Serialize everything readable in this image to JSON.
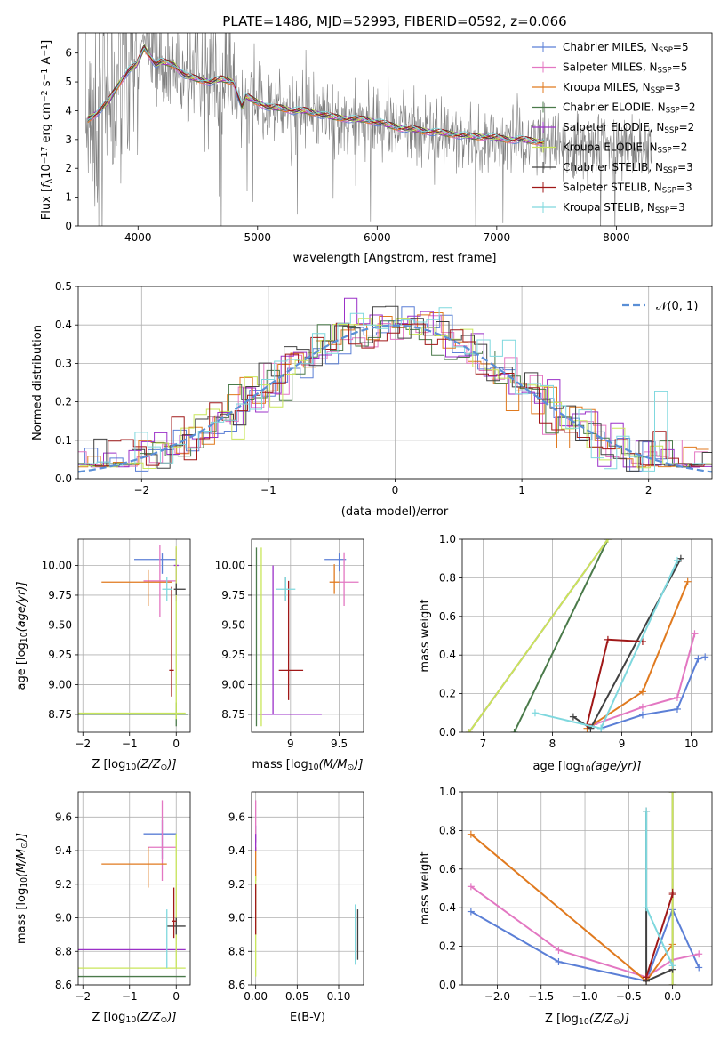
{
  "colors": {
    "Chabrier MILES": "#5b7fd6",
    "Salpeter MILES": "#e377c2",
    "Kroupa MILES": "#e07a1f",
    "Chabrier ELODIE": "#4a7a4a",
    "Salpeter ELODIE": "#9b30c8",
    "Kroupa ELODIE": "#c9e65a",
    "Chabrier STELIB": "#404040",
    "Salpeter STELIB": "#a01818",
    "Kroupa STELIB": "#7fd8de",
    "data": "#7f7f7f",
    "normal": "#5a8fd6"
  },
  "chart_data": [
    {
      "id": "spectrum",
      "type": "line",
      "title": "PLATE=1486, MJD=52993, FIBERID=0592, z=0.066",
      "xlabel": "wavelength [Angstrom, rest frame]",
      "ylabel": "Flux [f_λ10^{-17} erg cm^{-2} s^{-1} A^{-1}]",
      "ylabel_parts": [
        "Flux [",
        "f",
        "λ",
        "10",
        "−17",
        " erg cm",
        "−2",
        " s",
        "−1",
        " A",
        "−1",
        "]"
      ],
      "xlim": [
        3500,
        8800
      ],
      "ylim": [
        0,
        6.7
      ],
      "xticks": [
        4000,
        5000,
        6000,
        7000,
        8000
      ],
      "yticks": [
        0,
        1,
        2,
        3,
        4,
        5,
        6
      ],
      "legend": [
        {
          "name": "Chabrier MILES, N",
          "sub": "SSP",
          "val": "=5"
        },
        {
          "name": "Salpeter MILES, N",
          "sub": "SSP",
          "val": "=5"
        },
        {
          "name": "Kroupa MILES, N",
          "sub": "SSP",
          "val": "=3"
        },
        {
          "name": "Chabrier ELODIE, N",
          "sub": "SSP",
          "val": "=2"
        },
        {
          "name": "Salpeter ELODIE, N",
          "sub": "SSP",
          "val": "=2"
        },
        {
          "name": "Kroupa ELODIE, N",
          "sub": "SSP",
          "val": "=2"
        },
        {
          "name": "Chabrier STELIB, N",
          "sub": "SSP",
          "val": "=3"
        },
        {
          "name": "Salpeter STELIB, N",
          "sub": "SSP",
          "val": "=3"
        },
        {
          "name": "Kroupa STELIB, N",
          "sub": "SSP",
          "val": "=3"
        }
      ],
      "legend_placement": "upper right",
      "model_envelope": {
        "x": [
          3580,
          3650,
          3750,
          3850,
          3920,
          3990,
          4050,
          4100,
          4150,
          4200,
          4300,
          4400,
          4500,
          4600,
          4700,
          4800,
          4870,
          4900,
          5000,
          5100,
          5200,
          5300,
          5400,
          5500,
          5600,
          5700,
          5800,
          5900,
          6000,
          6100,
          6200,
          6300,
          6400,
          6500,
          6600,
          6700,
          6800,
          6900,
          7000,
          7100,
          7200,
          7300,
          7400
        ],
        "y": [
          3.7,
          3.9,
          4.3,
          5.0,
          5.4,
          5.6,
          6.2,
          5.9,
          5.6,
          5.7,
          5.6,
          5.2,
          5.1,
          5.0,
          5.1,
          5.0,
          4.1,
          4.5,
          4.3,
          4.1,
          4.1,
          4.0,
          4.0,
          3.9,
          3.8,
          3.75,
          3.7,
          3.7,
          3.6,
          3.5,
          3.4,
          3.35,
          3.3,
          3.25,
          3.2,
          3.15,
          3.1,
          3.1,
          3.05,
          3.0,
          3.0,
          2.95,
          2.9
        ]
      },
      "data_endpoints": {
        "x": [
          3560,
          8300
        ],
        "y": [
          3.5,
          2.6
        ]
      }
    },
    {
      "id": "residuals",
      "type": "histogram",
      "xlabel": "(data-model)/error",
      "ylabel": "Normed distribution",
      "xlim": [
        -2.5,
        2.5
      ],
      "ylim": [
        0,
        0.5
      ],
      "xticks": [
        -2,
        -1,
        0,
        1,
        2
      ],
      "yticks": [
        0,
        0.1,
        0.2,
        0.3,
        0.4,
        0.5
      ],
      "legend": [
        "𝒩(0, 1)"
      ],
      "legend_placement": "upper right",
      "reference": {
        "mean": 0,
        "sigma": 1
      }
    },
    {
      "id": "age_vs_Z",
      "type": "errorbar",
      "xlabel_parts": [
        "Z [log",
        "10",
        "(Z/Z",
        "⊙",
        ")]"
      ],
      "ylabel_parts": [
        "age  [log",
        "10",
        "(age/yr)]"
      ],
      "xlim": [
        -2.1,
        0.3
      ],
      "ylim": [
        8.6,
        10.22
      ],
      "xticks": [
        -2,
        -1,
        0
      ],
      "yticks": [
        8.75,
        9.0,
        9.25,
        9.5,
        9.75,
        10.0
      ],
      "points": [
        {
          "model": "Chabrier MILES",
          "x": -0.3,
          "xerr": [
            0.6,
            0.3
          ],
          "y": 10.05,
          "yerr": [
            0.12,
            0.05
          ]
        },
        {
          "model": "Salpeter MILES",
          "x": -0.35,
          "xerr": [
            0.35,
            0.35
          ],
          "y": 9.87,
          "yerr": [
            0.3,
            0.3
          ]
        },
        {
          "model": "Kroupa MILES",
          "x": -0.6,
          "xerr": [
            1.0,
            0.5
          ],
          "y": 9.86,
          "yerr": [
            0.2,
            0.1
          ]
        },
        {
          "model": "Chabrier ELODIE",
          "x": 0.0,
          "xerr": [
            2.1,
            0.25
          ],
          "y": 8.75,
          "yerr": [
            0.1,
            0.1
          ]
        },
        {
          "model": "Salpeter ELODIE",
          "x": 0.0,
          "xerr": [
            0.05,
            0.05
          ],
          "y": 10.0,
          "yerr": [
            0.3,
            0.15
          ]
        },
        {
          "model": "Kroupa ELODIE",
          "x": 0.0,
          "xerr": [
            2.1,
            0.2
          ],
          "y": 8.76,
          "yerr": [
            0.05,
            1.4
          ]
        },
        {
          "model": "Chabrier STELIB",
          "x": 0.0,
          "xerr": [
            0.05,
            0.2
          ],
          "y": 9.8,
          "yerr": [
            0.05,
            0.05
          ]
        },
        {
          "model": "Salpeter STELIB",
          "x": -0.1,
          "xerr": [
            0.05,
            0.05
          ],
          "y": 9.12,
          "yerr": [
            0.22,
            0.7
          ]
        },
        {
          "model": "Kroupa STELIB",
          "x": -0.2,
          "xerr": [
            0.1,
            0.1
          ],
          "y": 9.8,
          "yerr": [
            0.1,
            0.1
          ]
        }
      ]
    },
    {
      "id": "age_vs_mass",
      "type": "errorbar",
      "xlabel_parts": [
        "mass [log",
        "10",
        "(M/M",
        "⊙",
        ")]"
      ],
      "xlim": [
        8.6,
        9.75
      ],
      "ylim": [
        8.6,
        10.22
      ],
      "xticks": [
        9.0,
        9.5
      ],
      "yticks": [
        8.75,
        9.0,
        9.25,
        9.5,
        9.75,
        10.0
      ],
      "points": [
        {
          "model": "Chabrier MILES",
          "x": 9.5,
          "xerr": [
            0.15,
            0.07
          ],
          "y": 10.05,
          "yerr": [
            0.1,
            0.05
          ]
        },
        {
          "model": "Salpeter MILES",
          "x": 9.55,
          "xerr": [
            0.05,
            0.15
          ],
          "y": 9.86,
          "yerr": [
            0.2,
            0.25
          ]
        },
        {
          "model": "Kroupa MILES",
          "x": 9.45,
          "xerr": [
            0.05,
            0.05
          ],
          "y": 9.86,
          "yerr": [
            0.1,
            0.15
          ]
        },
        {
          "model": "Chabrier ELODIE",
          "x": 8.65,
          "xerr": [
            0.0,
            0.0
          ],
          "y": 8.75,
          "yerr": [
            0.1,
            1.4
          ]
        },
        {
          "model": "Salpeter ELODIE",
          "x": 8.82,
          "xerr": [
            0.15,
            0.5
          ],
          "y": 8.75,
          "yerr": [
            0.0,
            1.25
          ]
        },
        {
          "model": "Kroupa ELODIE",
          "x": 8.7,
          "xerr": [
            0.0,
            0.0
          ],
          "y": 8.75,
          "yerr": [
            0.1,
            1.4
          ]
        },
        {
          "model": "Chabrier STELIB",
          "x": 8.95,
          "xerr": [
            0.0,
            0.0
          ],
          "y": 9.8,
          "yerr": [
            0.1,
            0.1
          ]
        },
        {
          "model": "Salpeter STELIB",
          "x": 8.98,
          "xerr": [
            0.1,
            0.15
          ],
          "y": 9.12,
          "yerr": [
            0.25,
            0.75
          ]
        },
        {
          "model": "Kroupa STELIB",
          "x": 8.95,
          "xerr": [
            0.1,
            0.1
          ],
          "y": 9.8,
          "yerr": [
            0.1,
            0.1
          ]
        }
      ]
    },
    {
      "id": "mass_weight_vs_age",
      "type": "line",
      "xlabel_parts": [
        "age  [log",
        "10",
        "(age/yr)]"
      ],
      "ylabel": "mass weight",
      "xlim": [
        6.7,
        10.3
      ],
      "ylim": [
        0,
        1.0
      ],
      "xticks": [
        7,
        8,
        9,
        10
      ],
      "yticks": [
        0.0,
        0.2,
        0.4,
        0.6,
        0.8,
        1.0
      ],
      "series": [
        {
          "model": "Chabrier MILES",
          "x": [
            8.7,
            9.3,
            9.8,
            10.1,
            10.2
          ],
          "y": [
            0.02,
            0.09,
            0.12,
            0.38,
            0.39
          ]
        },
        {
          "model": "Salpeter MILES",
          "x": [
            8.6,
            9.3,
            9.8,
            10.05
          ],
          "y": [
            0.04,
            0.13,
            0.18,
            0.51
          ]
        },
        {
          "model": "Kroupa MILES",
          "x": [
            8.5,
            9.3,
            9.95
          ],
          "y": [
            0.02,
            0.21,
            0.78
          ]
        },
        {
          "model": "Chabrier ELODIE",
          "x": [
            7.45,
            8.8
          ],
          "y": [
            0.0,
            1.0
          ]
        },
        {
          "model": "Salpeter ELODIE",
          "x": [
            6.8,
            8.8
          ],
          "y": [
            0.0,
            1.0
          ]
        },
        {
          "model": "Kroupa ELODIE",
          "x": [
            6.8,
            8.8
          ],
          "y": [
            0.0,
            1.0
          ]
        },
        {
          "model": "Chabrier STELIB",
          "x": [
            8.3,
            8.55,
            9.85
          ],
          "y": [
            0.08,
            0.02,
            0.9
          ]
        },
        {
          "model": "Salpeter STELIB",
          "x": [
            8.5,
            8.8,
            9.3
          ],
          "y": [
            0.04,
            0.48,
            0.47
          ]
        },
        {
          "model": "Kroupa STELIB",
          "x": [
            7.75,
            8.7,
            9.8
          ],
          "y": [
            0.1,
            0.02,
            0.89
          ]
        }
      ]
    },
    {
      "id": "mass_vs_Z",
      "type": "errorbar",
      "xlabel_parts": [
        "Z [log",
        "10",
        "(Z/Z",
        "⊙",
        ")]"
      ],
      "ylabel_parts": [
        "mass [log",
        "10",
        "(M/M",
        "⊙",
        ")]"
      ],
      "xlim": [
        -2.1,
        0.3
      ],
      "ylim": [
        8.6,
        9.75
      ],
      "xticks": [
        -2,
        -1,
        0
      ],
      "yticks": [
        8.6,
        8.8,
        9.0,
        9.2,
        9.4,
        9.6
      ],
      "points": [
        {
          "model": "Chabrier MILES",
          "x": -0.3,
          "xerr": [
            0.4,
            0.3
          ],
          "y": 9.5,
          "yerr": [
            0.15,
            0.08
          ]
        },
        {
          "model": "Salpeter MILES",
          "x": -0.3,
          "xerr": [
            0.3,
            0.3
          ],
          "y": 9.42,
          "yerr": [
            0.2,
            0.28
          ]
        },
        {
          "model": "Kroupa MILES",
          "x": -0.6,
          "xerr": [
            1.0,
            0.4
          ],
          "y": 9.32,
          "yerr": [
            0.14,
            0.1
          ]
        },
        {
          "model": "Chabrier ELODIE",
          "x": -0.8,
          "xerr": [
            1.3,
            1.0
          ],
          "y": 8.65,
          "yerr": [
            0.0,
            0.0
          ]
        },
        {
          "model": "Salpeter ELODIE",
          "x": -0.8,
          "xerr": [
            1.3,
            1.0
          ],
          "y": 8.81,
          "yerr": [
            0.0,
            0.0
          ]
        },
        {
          "model": "Kroupa ELODIE",
          "x": 0.0,
          "xerr": [
            2.1,
            0.2
          ],
          "y": 8.7,
          "yerr": [
            0.0,
            0.8
          ]
        },
        {
          "model": "Chabrier STELIB",
          "x": 0.0,
          "xerr": [
            0.2,
            0.2
          ],
          "y": 8.95,
          "yerr": [
            0.05,
            0.05
          ]
        },
        {
          "model": "Salpeter STELIB",
          "x": -0.05,
          "xerr": [
            0.05,
            0.05
          ],
          "y": 8.98,
          "yerr": [
            0.1,
            0.2
          ]
        },
        {
          "model": "Kroupa STELIB",
          "x": -0.2,
          "xerr": [
            0.0,
            0.0
          ],
          "y": 8.95,
          "yerr": [
            0.25,
            0.1
          ]
        }
      ]
    },
    {
      "id": "mass_vs_ebv",
      "type": "errorbar",
      "xlabel": "E(B-V)",
      "xlim": [
        -0.005,
        0.13
      ],
      "ylim": [
        8.6,
        9.75
      ],
      "xticks": [
        0.0,
        0.05,
        0.1
      ],
      "xtick_labels": [
        "0.00",
        "0.05",
        "0.10"
      ],
      "yticks": [
        8.6,
        8.8,
        9.0,
        9.2,
        9.4,
        9.6
      ],
      "points": [
        {
          "model": "Chabrier MILES",
          "x": 0.0,
          "xerr": [
            0.0,
            0.0
          ],
          "y": 9.5,
          "yerr": [
            0.05,
            0.05
          ]
        },
        {
          "model": "Salpeter MILES",
          "x": 0.0,
          "xerr": [
            0.0,
            0.0
          ],
          "y": 9.55,
          "yerr": [
            0.1,
            0.15
          ]
        },
        {
          "model": "Kroupa MILES",
          "x": 0.0,
          "xerr": [
            0.0,
            0.0
          ],
          "y": 9.32,
          "yerr": [
            0.1,
            0.1
          ]
        },
        {
          "model": "Chabrier ELODIE",
          "x": 0.0,
          "xerr": [
            0.0,
            0.0
          ],
          "y": 8.65,
          "yerr": [
            0.0,
            0.0
          ]
        },
        {
          "model": "Salpeter ELODIE",
          "x": 0.0,
          "xerr": [
            0.0,
            0.0
          ],
          "y": 9.45,
          "yerr": [
            0.05,
            0.05
          ]
        },
        {
          "model": "Kroupa ELODIE",
          "x": 0.0,
          "xerr": [
            0.0,
            0.0
          ],
          "y": 8.95,
          "yerr": [
            0.3,
            0.3
          ]
        },
        {
          "model": "Chabrier STELIB",
          "x": 0.123,
          "xerr": [
            0.0,
            0.0
          ],
          "y": 8.9,
          "yerr": [
            0.15,
            0.15
          ]
        },
        {
          "model": "Salpeter STELIB",
          "x": 0.0,
          "xerr": [
            0.0,
            0.0
          ],
          "y": 9.05,
          "yerr": [
            0.15,
            0.15
          ]
        },
        {
          "model": "Kroupa STELIB",
          "x": 0.12,
          "xerr": [
            0.0,
            0.0
          ],
          "y": 8.9,
          "yerr": [
            0.18,
            0.18
          ]
        }
      ]
    },
    {
      "id": "mass_weight_vs_Z",
      "type": "line",
      "xlabel_parts": [
        "Z [log",
        "10",
        "(Z/Z",
        "⊙",
        ")]"
      ],
      "ylabel": "mass weight",
      "xlim": [
        -2.4,
        0.45
      ],
      "ylim": [
        0,
        1.0
      ],
      "xticks": [
        -2.0,
        -1.5,
        -1.0,
        -0.5,
        0.0
      ],
      "xtick_labels": [
        "−2.0",
        "−1.5",
        "−1.0",
        "−0.5",
        "0.0"
      ],
      "yticks": [
        0.0,
        0.2,
        0.4,
        0.6,
        0.8,
        1.0
      ],
      "series": [
        {
          "model": "Chabrier MILES",
          "x": [
            -2.3,
            -1.3,
            -0.3,
            0.0,
            0.3
          ],
          "y": [
            0.38,
            0.12,
            0.02,
            0.39,
            0.09
          ]
        },
        {
          "model": "Salpeter MILES",
          "x": [
            -2.3,
            -1.3,
            -0.3,
            0.0,
            0.3
          ],
          "y": [
            0.51,
            0.18,
            0.04,
            0.13,
            0.16
          ]
        },
        {
          "model": "Kroupa MILES",
          "x": [
            -2.3,
            -0.3,
            0.0
          ],
          "y": [
            0.78,
            0.02,
            0.21
          ]
        },
        {
          "model": "Chabrier ELODIE",
          "x": [
            0.0,
            0.0
          ],
          "y": [
            0.0,
            1.0
          ]
        },
        {
          "model": "Salpeter ELODIE",
          "x": [
            0.0,
            0.0
          ],
          "y": [
            0.0,
            1.0
          ]
        },
        {
          "model": "Kroupa ELODIE",
          "x": [
            0.0,
            0.0
          ],
          "y": [
            0.0,
            1.0
          ]
        },
        {
          "model": "Chabrier STELIB",
          "x": [
            -0.3,
            -0.3,
            0.0
          ],
          "y": [
            0.9,
            0.02,
            0.08
          ]
        },
        {
          "model": "Salpeter STELIB",
          "x": [
            -0.3,
            0.0,
            0.0
          ],
          "y": [
            0.04,
            0.47,
            0.48
          ]
        },
        {
          "model": "Kroupa STELIB",
          "x": [
            -0.3,
            -0.3,
            0.0
          ],
          "y": [
            0.9,
            0.4,
            0.1
          ]
        }
      ]
    }
  ]
}
